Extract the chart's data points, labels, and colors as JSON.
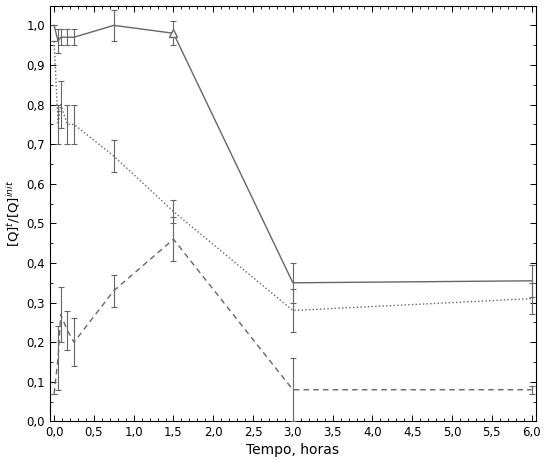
{
  "solid_x": [
    0.0,
    0.05,
    0.083,
    0.167,
    0.25,
    0.75,
    1.5,
    3.0,
    6.0
  ],
  "solid_y": [
    1.0,
    0.96,
    0.97,
    0.97,
    0.97,
    1.0,
    0.98,
    0.35,
    0.355
  ],
  "solid_yerr": [
    0.0,
    0.03,
    0.02,
    0.02,
    0.02,
    0.04,
    0.03,
    0.05,
    0.04
  ],
  "dotted_x": [
    0.0,
    0.05,
    0.083,
    0.167,
    0.25,
    0.75,
    1.5,
    3.0,
    6.0
  ],
  "dotted_y": [
    0.96,
    0.75,
    0.8,
    0.75,
    0.75,
    0.67,
    0.53,
    0.28,
    0.31
  ],
  "dotted_yerr": [
    0.0,
    0.05,
    0.06,
    0.05,
    0.05,
    0.04,
    0.03,
    0.055,
    0.04
  ],
  "dashed_x": [
    0.0,
    0.05,
    0.083,
    0.167,
    0.25,
    0.75,
    1.5,
    3.0,
    6.0
  ],
  "dashed_y": [
    0.07,
    0.16,
    0.27,
    0.23,
    0.2,
    0.33,
    0.46,
    0.08,
    0.08
  ],
  "dashed_yerr": [
    0.0,
    0.08,
    0.07,
    0.05,
    0.06,
    0.04,
    0.055,
    0.08,
    0.01
  ],
  "xlabel": "Tempo, horas",
  "xlim": [
    -0.05,
    6.05
  ],
  "ylim": [
    0.0,
    1.05
  ],
  "xticks": [
    0.0,
    0.5,
    1.0,
    1.5,
    2.0,
    2.5,
    3.0,
    3.5,
    4.0,
    4.5,
    5.0,
    5.5,
    6.0
  ],
  "yticks": [
    0.0,
    0.1,
    0.2,
    0.3,
    0.4,
    0.5,
    0.6,
    0.7,
    0.8,
    0.9,
    1.0
  ],
  "line_color": "#666666",
  "background_color": "#ffffff",
  "figsize": [
    5.47,
    4.63
  ],
  "dpi": 100
}
